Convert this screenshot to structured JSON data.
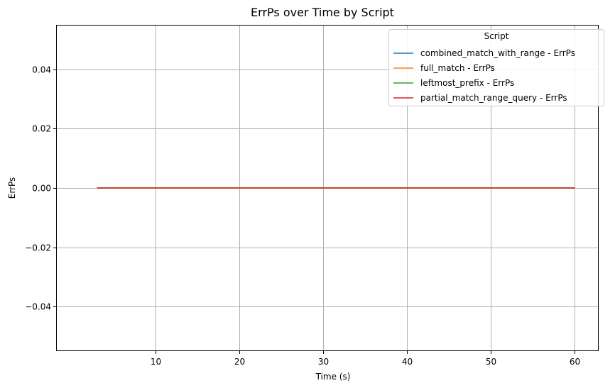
{
  "chart_data": {
    "type": "line",
    "title": "ErrPs over Time by Script",
    "xlabel": "Time (s)",
    "ylabel": "ErrPs",
    "xlim": [
      -1.9,
      62.85
    ],
    "ylim": [
      -0.055,
      0.055
    ],
    "xticks": [
      10,
      20,
      30,
      40,
      50,
      60
    ],
    "yticks": [
      -0.04,
      -0.02,
      0.0,
      0.02,
      0.04
    ],
    "xtick_labels": [
      "10",
      "20",
      "30",
      "40",
      "50",
      "60"
    ],
    "ytick_labels": [
      "−0.04",
      "−0.02",
      "0.00",
      "0.02",
      "0.04"
    ],
    "grid": true,
    "legend": {
      "title": "Script",
      "position": "top-right"
    },
    "series": [
      {
        "name": "combined_match_with_range - ErrPs",
        "color": "#1f77b4",
        "x": [
          3,
          60
        ],
        "y": [
          0,
          0
        ]
      },
      {
        "name": "full_match - ErrPs",
        "color": "#ff7f0e",
        "x": [
          3,
          60
        ],
        "y": [
          0,
          0
        ]
      },
      {
        "name": "leftmost_prefix - ErrPs",
        "color": "#2ca02c",
        "x": [
          3,
          60
        ],
        "y": [
          0,
          0
        ]
      },
      {
        "name": "partial_match_range_query - ErrPs",
        "color": "#d62728",
        "x": [
          3,
          60
        ],
        "y": [
          0,
          0
        ]
      }
    ]
  }
}
